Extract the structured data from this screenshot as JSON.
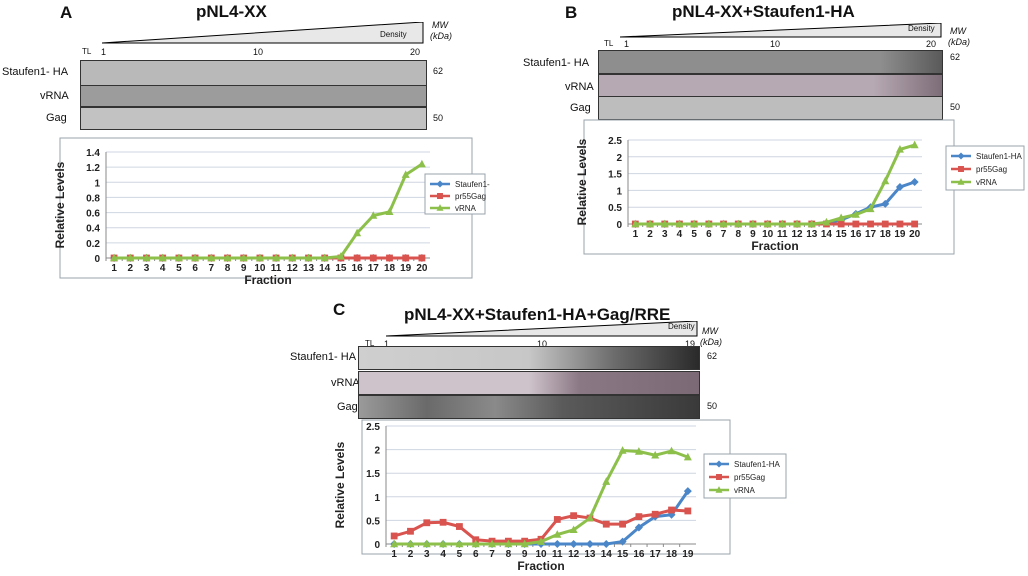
{
  "colors": {
    "staufen": "#4a86c8",
    "gag": "#d9534f",
    "vrna": "#8dc04a",
    "grid": "#cfd6e0",
    "axis": "#8a8a8a"
  },
  "legend_labels": [
    "Staufen1-HA",
    "pr55Gag",
    "vRNA"
  ],
  "common": {
    "tl": "TL",
    "density": "Density",
    "mw": "MW",
    "kda": "(kDa)",
    "lane_labels": [
      "Staufen1- HA",
      "vRNA",
      "Gag"
    ],
    "ylabel": "Relative Levels",
    "xlabel": "Fraction"
  },
  "panels": [
    {
      "letter": "A",
      "title": "pNL4-XX",
      "ticks": [
        "1",
        "10",
        "20"
      ],
      "mw": [
        "62",
        "50"
      ]
    },
    {
      "letter": "B",
      "title": "pNL4-XX+Staufen1-HA",
      "ticks": [
        "1",
        "10",
        "20"
      ],
      "mw": [
        "62",
        "50"
      ]
    },
    {
      "letter": "C",
      "title": "pNL4-XX+Staufen1-HA+Gag/RRE",
      "ticks": [
        "1",
        "10",
        "19"
      ],
      "mw": [
        "62",
        "50"
      ]
    }
  ],
  "chart_data": [
    {
      "type": "line",
      "panel": "A",
      "xlabel": "Fraction",
      "ylabel": "Relative Levels",
      "ylim": [
        0,
        1.4
      ],
      "yticks": [
        "0",
        "0.2",
        "0.4",
        "0.6",
        "0.8",
        "1",
        "1.2",
        "1.4"
      ],
      "categories": [
        "1",
        "2",
        "3",
        "4",
        "5",
        "6",
        "7",
        "8",
        "9",
        "10",
        "11",
        "12",
        "13",
        "14",
        "15",
        "16",
        "17",
        "18",
        "19",
        "20"
      ],
      "series": [
        {
          "name": "Staufen1-HA",
          "values": [
            0,
            0,
            0,
            0,
            0,
            0,
            0,
            0,
            0,
            0,
            0,
            0,
            0,
            0,
            0,
            0,
            0,
            0,
            0,
            0
          ]
        },
        {
          "name": "pr55Gag",
          "values": [
            0,
            0,
            0,
            0,
            0,
            0,
            0,
            0,
            0,
            0,
            0,
            0,
            0,
            0,
            0,
            0,
            0,
            0,
            0,
            0
          ]
        },
        {
          "name": "vRNA",
          "values": [
            0,
            0,
            0,
            0,
            0,
            0,
            0,
            0,
            0,
            0,
            0,
            0,
            0,
            0,
            0.02,
            0.33,
            0.56,
            0.61,
            1.1,
            1.24
          ]
        }
      ]
    },
    {
      "type": "line",
      "panel": "B",
      "xlabel": "Fraction",
      "ylabel": "Relative Levels",
      "ylim": [
        0,
        2.5
      ],
      "yticks": [
        "0",
        "0.5",
        "1",
        "1.5",
        "2",
        "2.5"
      ],
      "categories": [
        "1",
        "2",
        "3",
        "4",
        "5",
        "6",
        "7",
        "8",
        "9",
        "10",
        "11",
        "12",
        "13",
        "14",
        "15",
        "16",
        "17",
        "18",
        "19",
        "20"
      ],
      "series": [
        {
          "name": "Staufen1-HA",
          "values": [
            0,
            0,
            0,
            0,
            0,
            0,
            0,
            0,
            0,
            0,
            0,
            0,
            0,
            0.03,
            0.12,
            0.3,
            0.5,
            0.6,
            1.1,
            1.25
          ]
        },
        {
          "name": "pr55Gag",
          "values": [
            0,
            0,
            0,
            0,
            0,
            0,
            0,
            0,
            0,
            0,
            0,
            0,
            0,
            0,
            0,
            0,
            0,
            0,
            0,
            0
          ]
        },
        {
          "name": "vRNA",
          "values": [
            0,
            0,
            0,
            0,
            0,
            0,
            0,
            0,
            0,
            0,
            0,
            0,
            0,
            0.05,
            0.18,
            0.28,
            0.45,
            1.28,
            2.22,
            2.35
          ]
        }
      ]
    },
    {
      "type": "line",
      "panel": "C",
      "xlabel": "Fraction",
      "ylabel": "Relative Levels",
      "ylim": [
        0,
        2.5
      ],
      "yticks": [
        "0",
        "0.5",
        "1",
        "1.5",
        "2",
        "2.5"
      ],
      "categories": [
        "1",
        "2",
        "3",
        "4",
        "5",
        "6",
        "7",
        "8",
        "9",
        "10",
        "11",
        "12",
        "13",
        "14",
        "15",
        "16",
        "17",
        "18",
        "19"
      ],
      "series": [
        {
          "name": "Staufen1-HA",
          "values": [
            0,
            0,
            0,
            0,
            0,
            0,
            0,
            0,
            0,
            0,
            0,
            0,
            0,
            0,
            0.05,
            0.35,
            0.58,
            0.62,
            1.12
          ]
        },
        {
          "name": "pr55Gag",
          "values": [
            0.17,
            0.27,
            0.45,
            0.46,
            0.37,
            0.09,
            0.06,
            0.06,
            0.06,
            0.1,
            0.52,
            0.6,
            0.55,
            0.42,
            0.42,
            0.58,
            0.63,
            0.72,
            0.7
          ]
        },
        {
          "name": "vRNA",
          "values": [
            0,
            0,
            0,
            0,
            0,
            0,
            0,
            0,
            0,
            0.05,
            0.2,
            0.3,
            0.55,
            1.32,
            1.98,
            1.96,
            1.88,
            1.97,
            1.84
          ]
        }
      ]
    }
  ]
}
